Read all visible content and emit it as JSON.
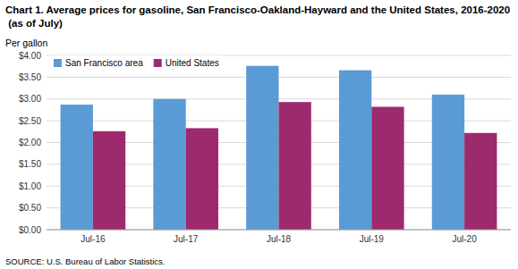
{
  "chart_data": {
    "type": "bar",
    "title": "Chart 1. Average prices for gasoline, San Francisco-Oakland-Hayward and the United States, 2016-2020  (as of July)",
    "ylabel": "Per gallon",
    "annotations": [
      "SOURCE: U.S. Bureau of Labor Statistics."
    ],
    "categories": [
      "Jul-16",
      "Jul-17",
      "Jul-18",
      "Jul-19",
      "Jul-20"
    ],
    "series": [
      {
        "name": "San Francisco area",
        "color": "#5B9BD5",
        "values": [
          2.87,
          3.0,
          3.76,
          3.66,
          3.1
        ]
      },
      {
        "name": "United States",
        "color": "#9E2A6E",
        "values": [
          2.26,
          2.33,
          2.93,
          2.82,
          2.22
        ]
      }
    ],
    "ylim": [
      0.0,
      4.0
    ],
    "yticks": [
      {
        "value": 0.0,
        "label": "$0.00"
      },
      {
        "value": 0.5,
        "label": "$0.50"
      },
      {
        "value": 1.0,
        "label": "$1.00"
      },
      {
        "value": 1.5,
        "label": "$1.50"
      },
      {
        "value": 2.0,
        "label": "$2.00"
      },
      {
        "value": 2.5,
        "label": "$2.50"
      },
      {
        "value": 3.0,
        "label": "$3.00"
      },
      {
        "value": 3.5,
        "label": "$3.50"
      },
      {
        "value": 4.0,
        "label": "$4.00"
      }
    ],
    "grid": true,
    "legend": "upper-left"
  }
}
